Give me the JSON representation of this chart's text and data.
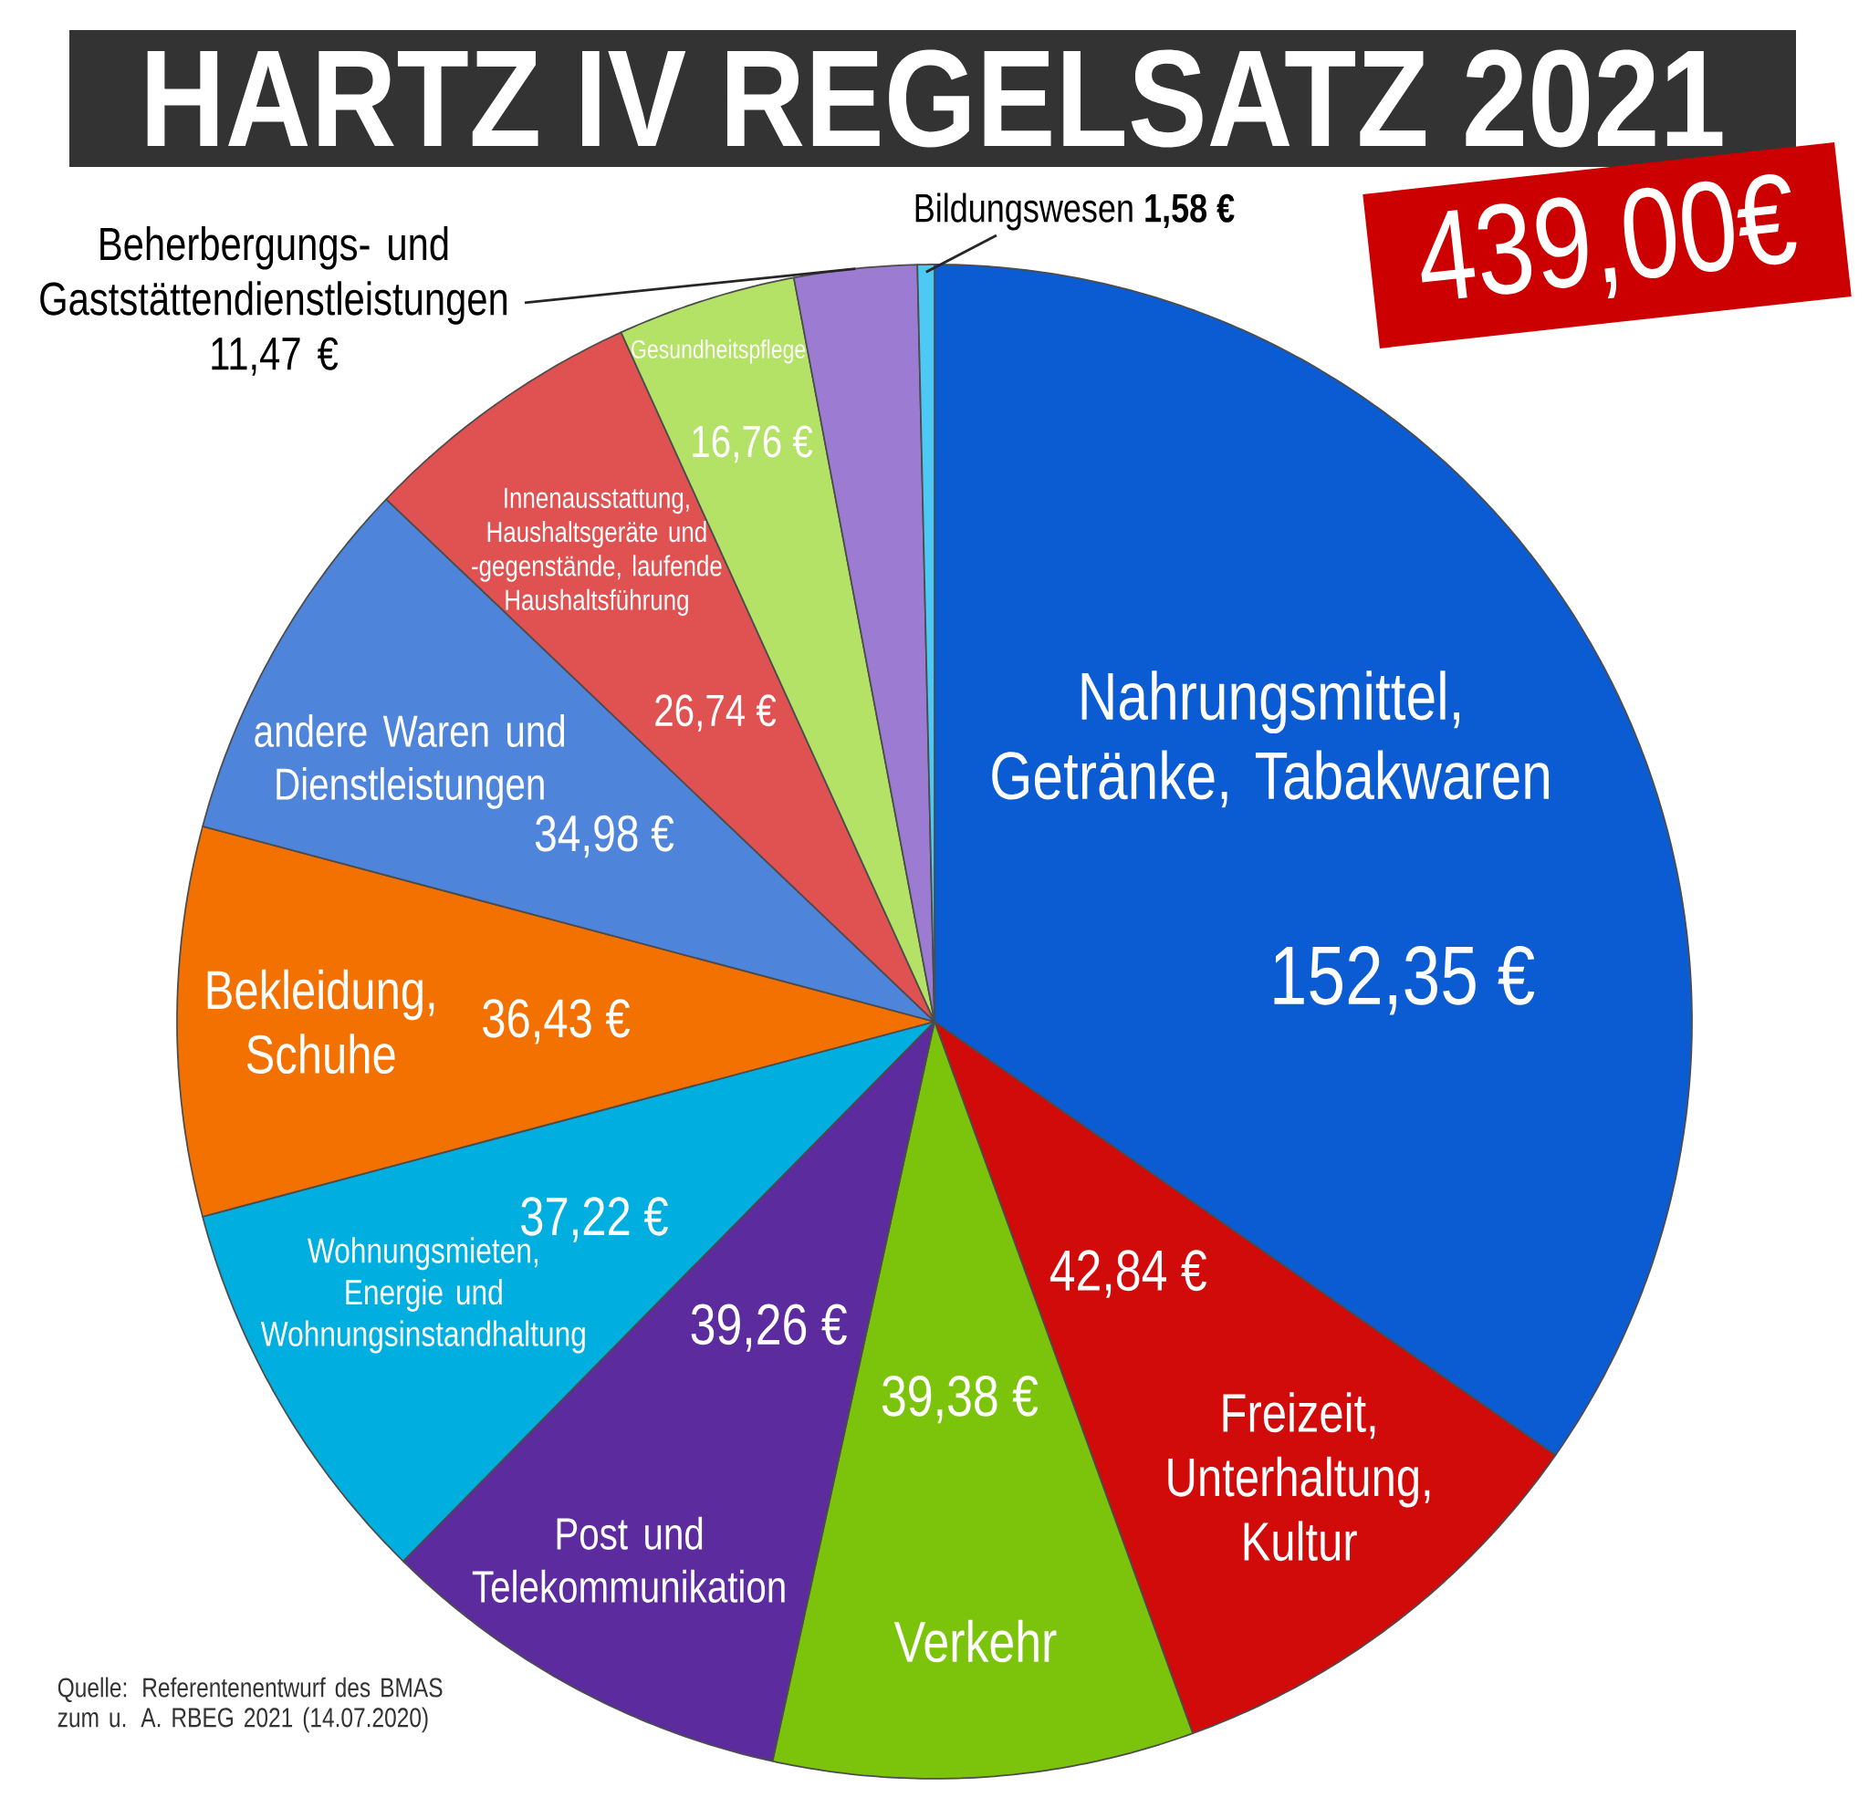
{
  "chart_data": {
    "type": "pie",
    "title": "HARTZ IV REGELSATZ 2021",
    "subtitle": "439,00€",
    "categories": [
      "Nahrungsmittel, Getränke, Tabakwaren",
      "Freizeit, Unterhaltung, Kultur",
      "Verkehr",
      "Post und Telekommunikation",
      "Wohnungsmieten, Energie und Wohnungsinstandhaltung",
      "Bekleidung, Schuhe",
      "andere Waren und Dienstleistungen",
      "Innenausstattung, Haushaltsgeräte und -gegenstände, laufende Haushaltsführung",
      "Gesundheitspflege",
      "Beherbergungs- und Gaststättendienstleistungen",
      "Bildungswesen"
    ],
    "values": [
      152.35,
      42.84,
      39.38,
      39.26,
      37.22,
      36.43,
      34.98,
      26.74,
      16.76,
      11.47,
      1.58
    ],
    "value_labels": [
      "152,35 €",
      "42,84 €",
      "39,38 €",
      "39,26 €",
      "37,22 €",
      "36,43 €",
      "34,98 €",
      "26,74 €",
      "16,76 €",
      "11,47 €",
      "1,58 €"
    ],
    "colors": [
      "#0b5bd3",
      "#d10a0a",
      "#7cc40c",
      "#5c2c9f",
      "#00afe0",
      "#f27100",
      "#4e84da",
      "#e05252",
      "#b3e266",
      "#9c7cd2",
      "#4cc9f5"
    ],
    "annotations": [
      "Quelle: Referentenentwurf des BMAS zum u. A. RBEG 2021 (14.07.2020)"
    ]
  }
}
